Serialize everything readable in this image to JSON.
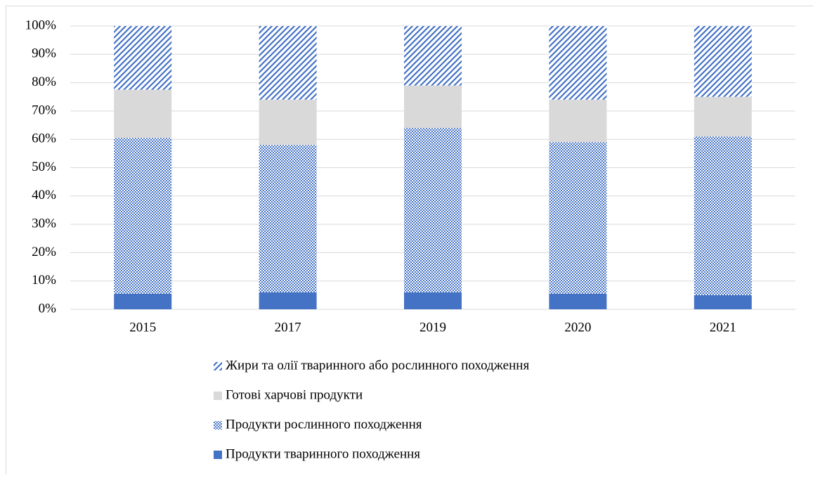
{
  "chart_data": {
    "type": "stacked_bar",
    "categories": [
      "2015",
      "2017",
      "2019",
      "2020",
      "2021"
    ],
    "series": [
      {
        "name": "Продукти тваринного походження",
        "color": "#4472c4",
        "pattern": "solid",
        "values": [
          5.5,
          6,
          6,
          5.5,
          5
        ]
      },
      {
        "name": "Продукти рослинного походження",
        "color": "#4472c4",
        "pattern": "checker",
        "values": [
          55,
          52,
          58,
          53.5,
          56
        ]
      },
      {
        "name": "Готові харчові продукти",
        "color": "#d9d9d9",
        "pattern": "solid",
        "values": [
          17,
          16,
          15,
          15,
          14
        ]
      },
      {
        "name": "Жири та олії тваринного або рослинного походження",
        "color": "#4472c4",
        "pattern": "diagonal",
        "values": [
          22.5,
          26,
          21,
          26,
          25
        ]
      }
    ],
    "ylim": [
      0,
      100
    ],
    "yticks": [
      {
        "value": 0,
        "label": "0%"
      },
      {
        "value": 10,
        "label": "10%"
      },
      {
        "value": 20,
        "label": "20%"
      },
      {
        "value": 30,
        "label": "30%"
      },
      {
        "value": 40,
        "label": "40%"
      },
      {
        "value": 50,
        "label": "50%"
      },
      {
        "value": 60,
        "label": "60%"
      },
      {
        "value": 70,
        "label": "70%"
      },
      {
        "value": 80,
        "label": "80%"
      },
      {
        "value": 90,
        "label": "90%"
      },
      {
        "value": 100,
        "label": "100%"
      }
    ],
    "grid": true,
    "legend": "bottom"
  }
}
